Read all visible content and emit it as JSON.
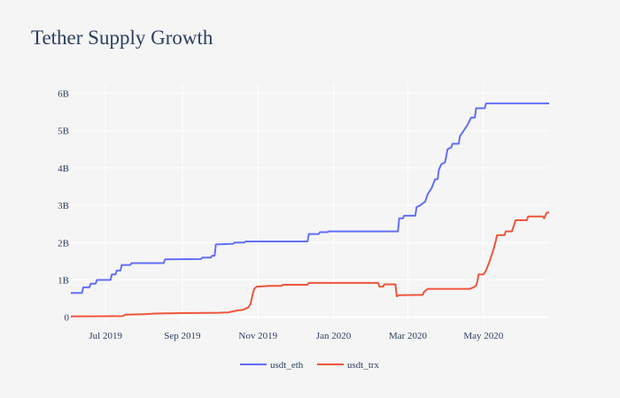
{
  "chart_data": {
    "type": "line",
    "title": "Tether Supply Growth",
    "xlabel": "",
    "ylabel": "",
    "x_ticks": [
      {
        "date": "2019-07-01",
        "label": "Jul 2019"
      },
      {
        "date": "2019-09-01",
        "label": "Sep 2019"
      },
      {
        "date": "2019-11-01",
        "label": "Nov 2019"
      },
      {
        "date": "2020-01-01",
        "label": "Jan 2020"
      },
      {
        "date": "2020-03-01",
        "label": "Mar 2020"
      },
      {
        "date": "2020-05-01",
        "label": "May 2020"
      }
    ],
    "xlim": [
      "2019-06-03",
      "2020-06-23"
    ],
    "y_ticks": [
      {
        "value": 0,
        "label": "0"
      },
      {
        "value": 1000000000,
        "label": "1B"
      },
      {
        "value": 2000000000,
        "label": "2B"
      },
      {
        "value": 3000000000,
        "label": "3B"
      },
      {
        "value": 4000000000,
        "label": "4B"
      },
      {
        "value": 5000000000,
        "label": "5B"
      },
      {
        "value": 6000000000,
        "label": "6B"
      }
    ],
    "ylim": [
      -150000000,
      6250000000
    ],
    "grid": true,
    "legend_position": "bottom-center",
    "series": [
      {
        "name": "usdt_eth",
        "color": "#636efa",
        "points": [
          [
            "2019-06-03",
            650000000
          ],
          [
            "2019-06-12",
            650000000
          ],
          [
            "2019-06-13",
            800000000
          ],
          [
            "2019-06-18",
            800000000
          ],
          [
            "2019-06-19",
            900000000
          ],
          [
            "2019-06-23",
            900000000
          ],
          [
            "2019-06-24",
            1000000000
          ],
          [
            "2019-07-05",
            1000000000
          ],
          [
            "2019-07-06",
            1150000000
          ],
          [
            "2019-07-09",
            1150000000
          ],
          [
            "2019-07-10",
            1250000000
          ],
          [
            "2019-07-13",
            1250000000
          ],
          [
            "2019-07-14",
            1400000000
          ],
          [
            "2019-07-21",
            1400000000
          ],
          [
            "2019-07-22",
            1450000000
          ],
          [
            "2019-08-17",
            1450000000
          ],
          [
            "2019-08-18",
            1550000000
          ],
          [
            "2019-09-16",
            1560000000
          ],
          [
            "2019-09-17",
            1600000000
          ],
          [
            "2019-09-24",
            1600000000
          ],
          [
            "2019-09-25",
            1650000000
          ],
          [
            "2019-09-27",
            1650000000
          ],
          [
            "2019-09-28",
            1950000000
          ],
          [
            "2019-10-12",
            1970000000
          ],
          [
            "2019-10-13",
            2000000000
          ],
          [
            "2019-10-21",
            2000000000
          ],
          [
            "2019-10-22",
            2030000000
          ],
          [
            "2019-12-11",
            2030000000
          ],
          [
            "2019-12-12",
            2230000000
          ],
          [
            "2019-12-20",
            2230000000
          ],
          [
            "2019-12-21",
            2280000000
          ],
          [
            "2019-12-27",
            2280000000
          ],
          [
            "2019-12-28",
            2300000000
          ],
          [
            "2020-02-22",
            2300000000
          ],
          [
            "2020-02-23",
            2650000000
          ],
          [
            "2020-02-26",
            2650000000
          ],
          [
            "2020-02-27",
            2720000000
          ],
          [
            "2020-03-07",
            2720000000
          ],
          [
            "2020-03-08",
            2950000000
          ],
          [
            "2020-03-11",
            3000000000
          ],
          [
            "2020-03-15",
            3100000000
          ],
          [
            "2020-03-17",
            3300000000
          ],
          [
            "2020-03-20",
            3450000000
          ],
          [
            "2020-03-23",
            3700000000
          ],
          [
            "2020-03-25",
            3700000000
          ],
          [
            "2020-03-26",
            3950000000
          ],
          [
            "2020-03-28",
            4100000000
          ],
          [
            "2020-03-31",
            4150000000
          ],
          [
            "2020-04-02",
            4500000000
          ],
          [
            "2020-04-05",
            4550000000
          ],
          [
            "2020-04-06",
            4650000000
          ],
          [
            "2020-04-11",
            4650000000
          ],
          [
            "2020-04-12",
            4850000000
          ],
          [
            "2020-04-15",
            5000000000
          ],
          [
            "2020-04-18",
            5150000000
          ],
          [
            "2020-04-21",
            5350000000
          ],
          [
            "2020-04-24",
            5350000000
          ],
          [
            "2020-04-25",
            5600000000
          ],
          [
            "2020-05-02",
            5600000000
          ],
          [
            "2020-05-03",
            5730000000
          ],
          [
            "2020-06-23",
            5730000000
          ]
        ]
      },
      {
        "name": "usdt_trx",
        "color": "#ef553b",
        "points": [
          [
            "2019-06-03",
            20000000
          ],
          [
            "2019-07-15",
            30000000
          ],
          [
            "2019-07-17",
            70000000
          ],
          [
            "2019-08-01",
            80000000
          ],
          [
            "2019-08-10",
            100000000
          ],
          [
            "2019-09-01",
            110000000
          ],
          [
            "2019-10-01",
            120000000
          ],
          [
            "2019-10-08",
            130000000
          ],
          [
            "2019-10-15",
            180000000
          ],
          [
            "2019-10-20",
            200000000
          ],
          [
            "2019-10-24",
            260000000
          ],
          [
            "2019-10-26",
            350000000
          ],
          [
            "2019-10-27",
            500000000
          ],
          [
            "2019-10-28",
            650000000
          ],
          [
            "2019-10-29",
            760000000
          ],
          [
            "2019-10-31",
            820000000
          ],
          [
            "2019-11-10",
            840000000
          ],
          [
            "2019-11-20",
            840000000
          ],
          [
            "2019-11-21",
            870000000
          ],
          [
            "2019-12-11",
            870000000
          ],
          [
            "2019-12-12",
            920000000
          ],
          [
            "2020-02-06",
            920000000
          ],
          [
            "2020-02-07",
            820000000
          ],
          [
            "2020-02-10",
            820000000
          ],
          [
            "2020-02-11",
            880000000
          ],
          [
            "2020-02-20",
            880000000
          ],
          [
            "2020-02-21",
            560000000
          ],
          [
            "2020-02-23",
            590000000
          ],
          [
            "2020-03-13",
            600000000
          ],
          [
            "2020-03-14",
            680000000
          ],
          [
            "2020-03-17",
            760000000
          ],
          [
            "2020-04-20",
            760000000
          ],
          [
            "2020-04-23",
            800000000
          ],
          [
            "2020-04-25",
            850000000
          ],
          [
            "2020-04-26",
            950000000
          ],
          [
            "2020-04-27",
            1150000000
          ],
          [
            "2020-05-01",
            1150000000
          ],
          [
            "2020-05-03",
            1250000000
          ],
          [
            "2020-05-06",
            1500000000
          ],
          [
            "2020-05-09",
            1800000000
          ],
          [
            "2020-05-11",
            2050000000
          ],
          [
            "2020-05-12",
            2200000000
          ],
          [
            "2020-05-18",
            2200000000
          ],
          [
            "2020-05-19",
            2300000000
          ],
          [
            "2020-05-24",
            2300000000
          ],
          [
            "2020-05-25",
            2400000000
          ],
          [
            "2020-05-27",
            2600000000
          ],
          [
            "2020-06-05",
            2600000000
          ],
          [
            "2020-06-06",
            2700000000
          ],
          [
            "2020-06-18",
            2700000000
          ],
          [
            "2020-06-19",
            2650000000
          ],
          [
            "2020-06-21",
            2800000000
          ],
          [
            "2020-06-23",
            2810000000
          ]
        ]
      }
    ]
  }
}
